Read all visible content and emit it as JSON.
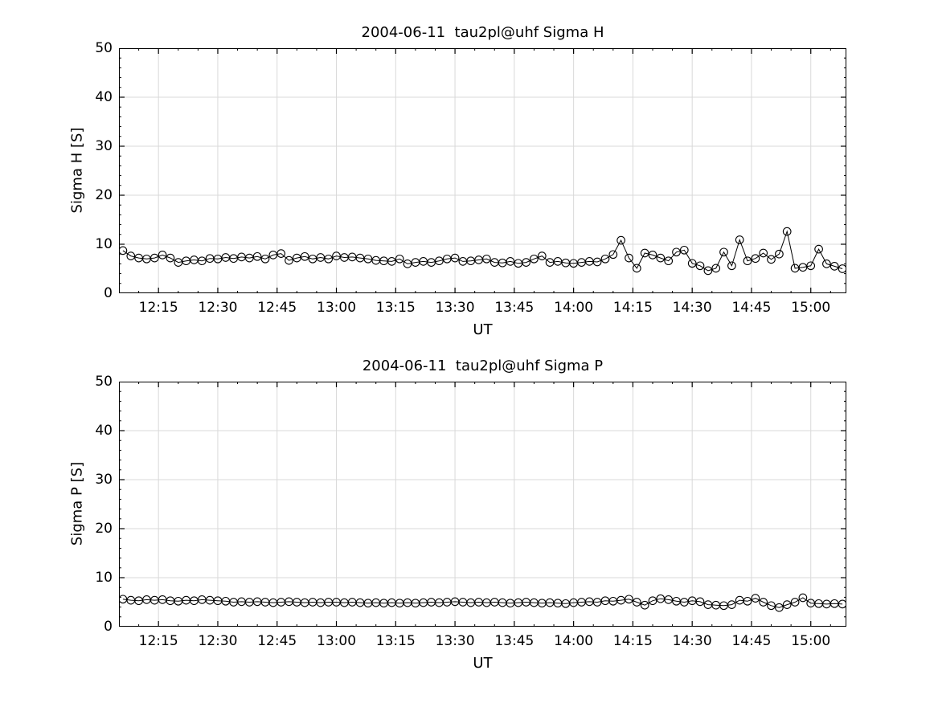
{
  "page": {
    "background": "#ffffff"
  },
  "chart_data": [
    {
      "type": "line",
      "title": "2004-06-11  tau2pl@uhf Sigma H",
      "xlabel": "UT",
      "ylabel": "Sigma H [S]",
      "ylim": [
        0,
        50
      ],
      "yticks": [
        0,
        10,
        20,
        30,
        40,
        50
      ],
      "xlim_minutes": [
        725,
        909
      ],
      "xtick_minutes": [
        735,
        750,
        765,
        780,
        795,
        810,
        825,
        840,
        855,
        870,
        885,
        900
      ],
      "xtick_labels": [
        "12:15",
        "12:30",
        "12:45",
        "13:00",
        "13:15",
        "13:30",
        "13:45",
        "14:00",
        "14:15",
        "14:30",
        "14:45",
        "15:00"
      ],
      "x_unit": "minutes since 00:00 UT",
      "minor_x_step": 5,
      "minor_y_step": 2,
      "grid": true,
      "grid_color": "#d9d9d9",
      "line_color": "#000000",
      "marker": "open-circle",
      "x_minutes": [
        726,
        728,
        730,
        732,
        734,
        736,
        738,
        740,
        742,
        744,
        746,
        748,
        750,
        752,
        754,
        756,
        758,
        760,
        762,
        764,
        766,
        768,
        770,
        772,
        774,
        776,
        778,
        780,
        782,
        784,
        786,
        788,
        790,
        792,
        794,
        796,
        798,
        800,
        802,
        804,
        806,
        808,
        810,
        812,
        814,
        816,
        818,
        820,
        822,
        824,
        826,
        828,
        830,
        832,
        834,
        836,
        838,
        840,
        842,
        844,
        846,
        848,
        850,
        852,
        854,
        856,
        858,
        860,
        862,
        864,
        866,
        868,
        870,
        872,
        874,
        876,
        878,
        880,
        882,
        884,
        886,
        888,
        890,
        892,
        894,
        896,
        898,
        900,
        902,
        904,
        906,
        908
      ],
      "y": [
        8.7,
        7.6,
        7.2,
        7.0,
        7.2,
        7.8,
        7.2,
        6.3,
        6.6,
        6.8,
        6.6,
        7.1,
        7.0,
        7.3,
        7.1,
        7.4,
        7.2,
        7.5,
        7.0,
        7.8,
        8.1,
        6.7,
        7.2,
        7.5,
        7.0,
        7.3,
        7.0,
        7.6,
        7.3,
        7.4,
        7.2,
        7.0,
        6.7,
        6.6,
        6.5,
        7.0,
        6.0,
        6.3,
        6.5,
        6.3,
        6.6,
        7.0,
        7.2,
        6.5,
        6.6,
        6.8,
        7.0,
        6.3,
        6.2,
        6.5,
        6.1,
        6.3,
        7.0,
        7.6,
        6.3,
        6.5,
        6.2,
        6.1,
        6.3,
        6.5,
        6.4,
        7.0,
        7.9,
        10.8,
        7.2,
        5.1,
        8.2,
        7.8,
        7.2,
        6.6,
        8.4,
        8.8,
        6.1,
        5.6,
        4.6,
        5.1,
        8.4,
        5.6,
        10.9,
        6.6,
        7.1,
        8.2,
        6.9,
        8.0,
        12.6,
        5.1,
        5.3,
        5.6,
        9.0,
        6.0,
        5.5,
        5.0
      ]
    },
    {
      "type": "line",
      "title": "2004-06-11  tau2pl@uhf Sigma P",
      "xlabel": "UT",
      "ylabel": "Sigma P [S]",
      "ylim": [
        0,
        50
      ],
      "yticks": [
        0,
        10,
        20,
        30,
        40,
        50
      ],
      "xlim_minutes": [
        725,
        909
      ],
      "xtick_minutes": [
        735,
        750,
        765,
        780,
        795,
        810,
        825,
        840,
        855,
        870,
        885,
        900
      ],
      "xtick_labels": [
        "12:15",
        "12:30",
        "12:45",
        "13:00",
        "13:15",
        "13:30",
        "13:45",
        "14:00",
        "14:15",
        "14:30",
        "14:45",
        "15:00"
      ],
      "x_unit": "minutes since 00:00 UT",
      "minor_x_step": 5,
      "minor_y_step": 2,
      "grid": true,
      "grid_color": "#d9d9d9",
      "line_color": "#000000",
      "marker": "open-circle",
      "x_minutes": [
        726,
        728,
        730,
        732,
        734,
        736,
        738,
        740,
        742,
        744,
        746,
        748,
        750,
        752,
        754,
        756,
        758,
        760,
        762,
        764,
        766,
        768,
        770,
        772,
        774,
        776,
        778,
        780,
        782,
        784,
        786,
        788,
        790,
        792,
        794,
        796,
        798,
        800,
        802,
        804,
        806,
        808,
        810,
        812,
        814,
        816,
        818,
        820,
        822,
        824,
        826,
        828,
        830,
        832,
        834,
        836,
        838,
        840,
        842,
        844,
        846,
        848,
        850,
        852,
        854,
        856,
        858,
        860,
        862,
        864,
        866,
        868,
        870,
        872,
        874,
        876,
        878,
        880,
        882,
        884,
        886,
        888,
        890,
        892,
        894,
        896,
        898,
        900,
        902,
        904,
        906,
        908
      ],
      "y": [
        5.6,
        5.4,
        5.3,
        5.5,
        5.4,
        5.5,
        5.3,
        5.2,
        5.4,
        5.3,
        5.5,
        5.4,
        5.3,
        5.2,
        5.0,
        5.1,
        5.0,
        5.1,
        5.0,
        4.9,
        5.0,
        5.1,
        5.0,
        4.9,
        5.0,
        4.9,
        5.0,
        5.0,
        4.9,
        5.0,
        4.9,
        4.8,
        4.9,
        4.8,
        4.9,
        4.8,
        4.9,
        4.8,
        4.9,
        5.0,
        4.9,
        5.0,
        5.1,
        5.0,
        4.9,
        5.0,
        4.9,
        5.0,
        4.9,
        4.8,
        4.9,
        5.0,
        4.9,
        4.8,
        4.9,
        4.8,
        4.7,
        4.9,
        5.0,
        5.1,
        5.0,
        5.3,
        5.2,
        5.4,
        5.6,
        5.0,
        4.4,
        5.3,
        5.7,
        5.5,
        5.2,
        5.0,
        5.3,
        5.1,
        4.5,
        4.4,
        4.3,
        4.5,
        5.4,
        5.2,
        5.8,
        5.0,
        4.3,
        3.9,
        4.5,
        5.0,
        5.9,
        4.8,
        4.7,
        4.6,
        4.7,
        4.6
      ]
    }
  ]
}
